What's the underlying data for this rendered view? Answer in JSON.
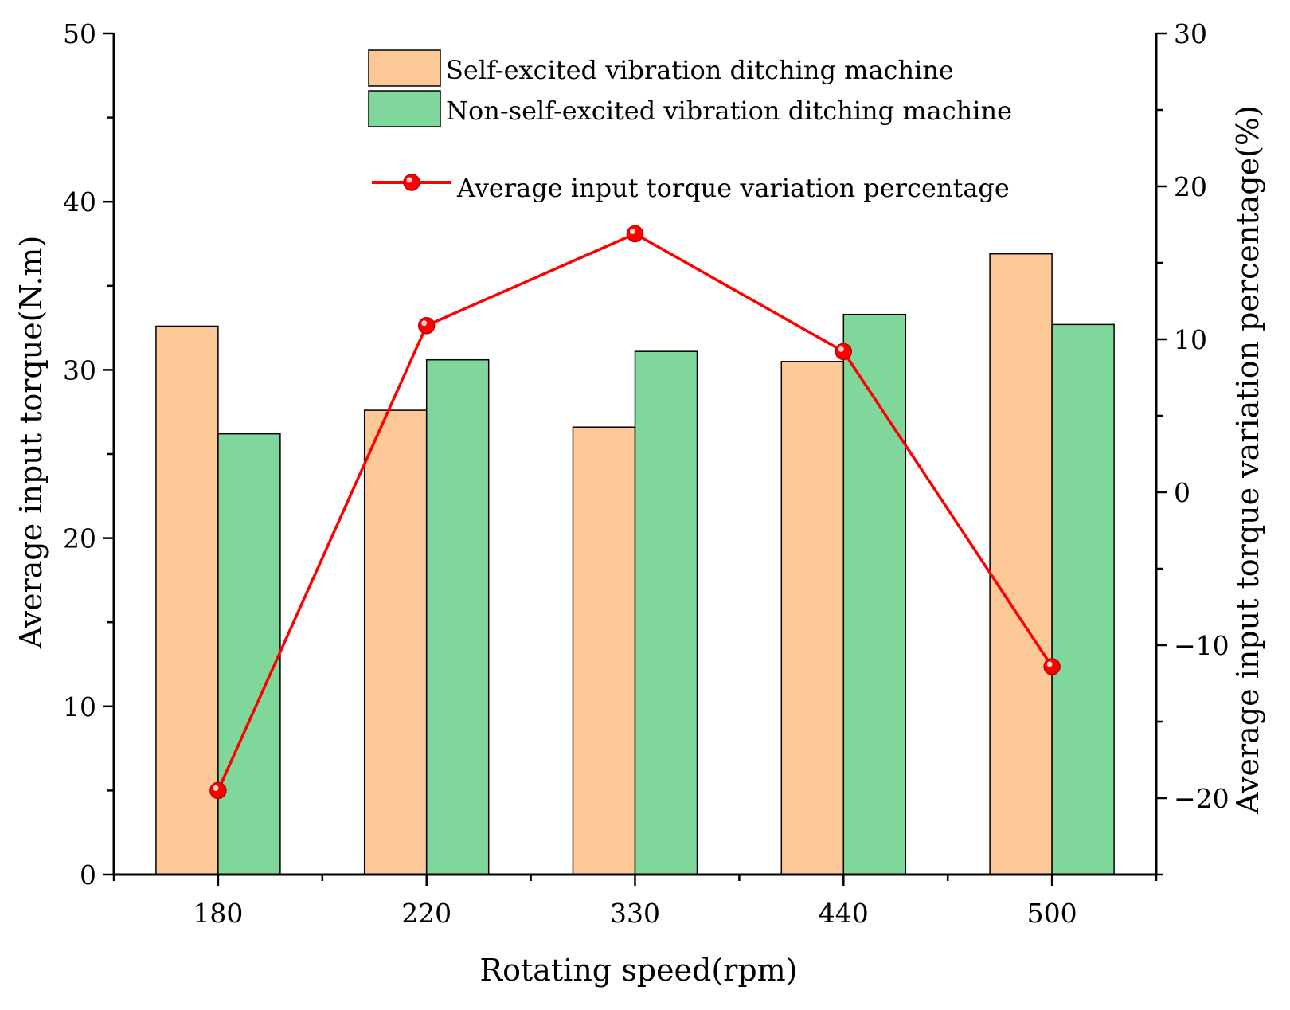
{
  "chart_data": {
    "type": "bar",
    "title": "",
    "xlabel": "Rotating speed(rpm)",
    "ylabel": "Average input torque(N.m)",
    "y2label": "Average input torque variation percentage(%)",
    "categories": [
      "180",
      "220",
      "330",
      "440",
      "500"
    ],
    "ylim": [
      0,
      50
    ],
    "y2lim": [
      -25,
      30
    ],
    "y_ticks": [
      0,
      10,
      20,
      30,
      40,
      50
    ],
    "y2_ticks": [
      -20,
      -10,
      0,
      10,
      20,
      30
    ],
    "y2_tick_labels": [
      "−20",
      "−10",
      "0",
      "10",
      "20",
      "30"
    ],
    "series": [
      {
        "name": "Self-excited vibration ditching machine",
        "axis": "left",
        "kind": "bar",
        "color": "#fcc897",
        "values": [
          32.6,
          27.6,
          26.6,
          30.5,
          36.9
        ]
      },
      {
        "name": "Non-self-excited vibration ditching machine",
        "axis": "left",
        "kind": "bar",
        "color": "#7fd79b",
        "values": [
          26.2,
          30.6,
          31.1,
          33.3,
          32.7
        ]
      },
      {
        "name": "Average input torque variation percentage",
        "axis": "right",
        "kind": "line",
        "color": "#ff0000",
        "values": [
          -19.5,
          10.9,
          16.9,
          9.2,
          -11.4
        ]
      }
    ],
    "legend_position": "top-center",
    "grid": false
  }
}
